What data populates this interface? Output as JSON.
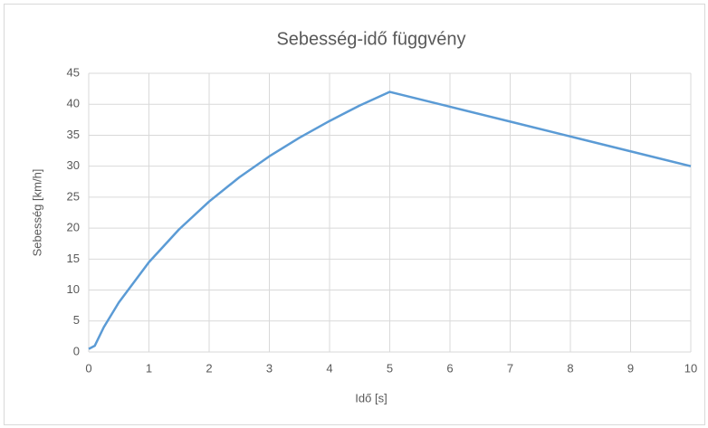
{
  "chart_data": {
    "type": "line",
    "title": "Sebesség-idő függvény",
    "x_label": "Idő [s]",
    "y_label": "Sebesség [km/h]",
    "x": [
      0,
      0.1,
      0.25,
      0.5,
      1,
      1.5,
      2,
      2.5,
      3,
      3.5,
      4,
      4.5,
      5,
      6,
      7,
      8,
      9,
      10
    ],
    "series": [
      {
        "name": "Sebesség",
        "color": "#5b9bd5",
        "values": [
          0.5,
          1,
          4,
          8,
          14.5,
          19.8,
          24.3,
          28.2,
          31.6,
          34.6,
          37.3,
          39.8,
          42,
          39.6,
          37.2,
          34.8,
          32.4,
          30
        ]
      }
    ],
    "xlim": [
      0,
      10
    ],
    "xticks": [
      0,
      1,
      2,
      3,
      4,
      5,
      6,
      7,
      8,
      9,
      10
    ],
    "ylim": [
      0,
      45
    ],
    "yticks": [
      0,
      5,
      10,
      15,
      20,
      25,
      30,
      35,
      40,
      45
    ],
    "grid": true
  }
}
